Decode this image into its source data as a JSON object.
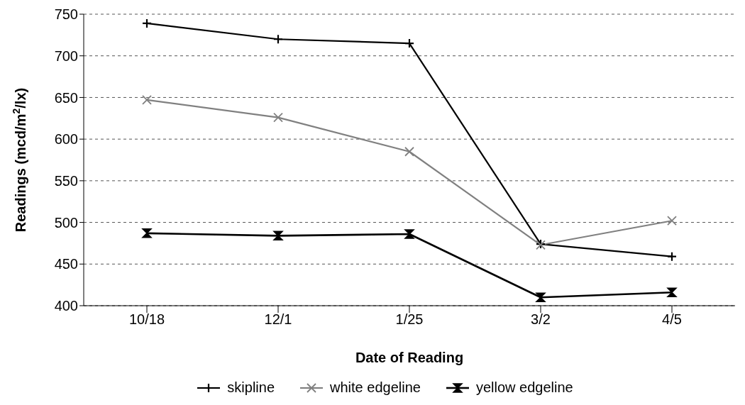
{
  "chart_data": {
    "type": "line",
    "xlabel": "Date of Reading",
    "ylabel": "Readings (mcd/m$^{2}$/lx)",
    "categories": [
      "10/18",
      "12/1",
      "1/25",
      "3/2",
      "4/5"
    ],
    "series": [
      {
        "name": "skipline",
        "color": "#000000",
        "marker": "plus",
        "values": [
          739,
          720,
          715,
          474,
          459
        ]
      },
      {
        "name": "white edgeline",
        "color": "#808080",
        "marker": "cross",
        "values": [
          647,
          626,
          585,
          473,
          502
        ]
      },
      {
        "name": "yellow edgeline",
        "color": "#000000",
        "marker": "diamond",
        "values": [
          487,
          484,
          486,
          410,
          416
        ]
      }
    ],
    "ylim": [
      400,
      750
    ],
    "yticks": [
      400,
      450,
      500,
      550,
      600,
      650,
      700,
      750
    ],
    "grid": "y",
    "legend": "bottom"
  }
}
